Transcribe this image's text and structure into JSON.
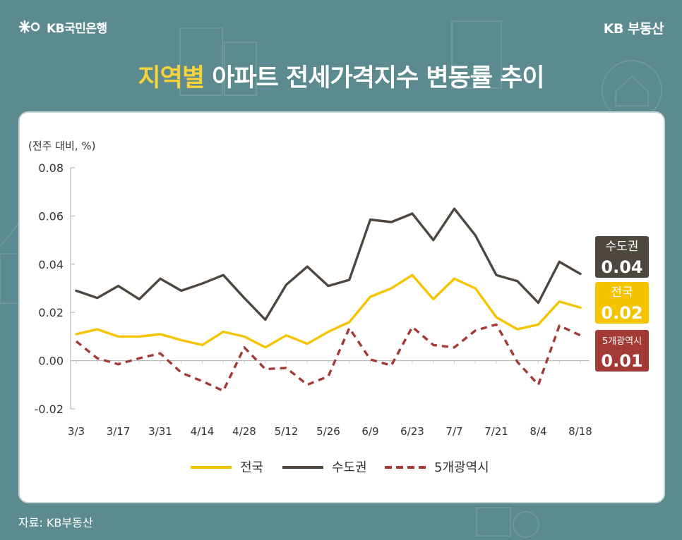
{
  "header": {
    "logo_text": "KB국민은행",
    "brand": "KB 부동산",
    "title_highlight": "지역별",
    "title_rest": " 아파트 전세가격지수 변동률 추이"
  },
  "unit_label": "(전주 대비, %)",
  "source": "자료: KB부동산",
  "colors": {
    "background": "#5b8b8f",
    "national": "#f5c400",
    "capital": "#4e4740",
    "metro": "#a33a35",
    "highlight": "#f7d23b"
  },
  "end_labels": [
    {
      "name": "수도권",
      "value": "0.04",
      "color": "#4e4740"
    },
    {
      "name": "전국",
      "value": "0.02",
      "color": "#f5c400"
    },
    {
      "name": "5개광역시",
      "value": "0.01",
      "color": "#a33a35"
    }
  ],
  "chart_data": {
    "type": "line",
    "x_tick_labels": [
      "3/3",
      "3/17",
      "3/31",
      "4/14",
      "4/28",
      "5/12",
      "5/26",
      "6/9",
      "6/23",
      "7/7",
      "7/21",
      "8/4",
      "8/18"
    ],
    "x": [
      "3/3",
      "3/10",
      "3/17",
      "3/24",
      "3/31",
      "4/7",
      "4/14",
      "4/21",
      "4/28",
      "5/5",
      "5/12",
      "5/19",
      "5/26",
      "6/2",
      "6/9",
      "6/16",
      "6/23",
      "6/30",
      "7/7",
      "7/14",
      "7/21",
      "7/28",
      "8/4",
      "8/11",
      "8/18"
    ],
    "y_ticks": [
      "0.08",
      "0.06",
      "0.04",
      "0.02",
      "0.00",
      "-0.02"
    ],
    "ylim": [
      -0.02,
      0.08
    ],
    "series": [
      {
        "name": "전국",
        "color": "#f5c400",
        "style": "solid",
        "values": [
          0.011,
          0.013,
          0.01,
          0.01,
          0.011,
          0.0085,
          0.0065,
          0.012,
          0.01,
          0.0055,
          0.0105,
          0.007,
          0.012,
          0.016,
          0.0265,
          0.03,
          0.0355,
          0.0255,
          0.034,
          0.03,
          0.018,
          0.013,
          0.015,
          0.0245,
          0.022
        ]
      },
      {
        "name": "수도권",
        "color": "#4e4740",
        "style": "solid",
        "values": [
          0.029,
          0.026,
          0.031,
          0.0255,
          0.034,
          0.029,
          0.032,
          0.0355,
          0.026,
          0.017,
          0.0315,
          0.039,
          0.031,
          0.0335,
          0.0585,
          0.0575,
          0.061,
          0.05,
          0.063,
          0.052,
          0.0355,
          0.033,
          0.024,
          0.041,
          0.036
        ]
      },
      {
        "name": "5개광역시",
        "color": "#a33a35",
        "style": "dashed",
        "values": [
          0.008,
          0.001,
          -0.0015,
          0.001,
          0.003,
          -0.005,
          -0.0085,
          -0.0125,
          0.0055,
          -0.0035,
          -0.003,
          -0.01,
          -0.0065,
          0.0135,
          0.0005,
          -0.002,
          0.014,
          0.0065,
          0.0055,
          0.0125,
          0.015,
          -0.0005,
          -0.01,
          0.0145,
          0.0105
        ]
      }
    ],
    "legend": "bottom",
    "grid": false
  }
}
